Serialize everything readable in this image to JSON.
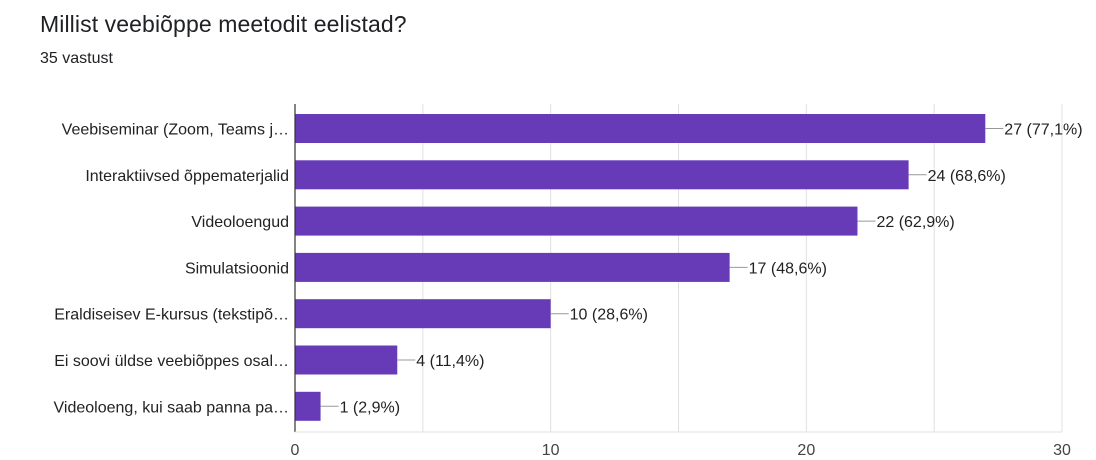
{
  "title": "Millist veebiõppe meetodit eelistad?",
  "subtitle": "35 vastust",
  "colors": {
    "bar": "#673ab7",
    "grid": "#e0e0e0",
    "axis": "#333333",
    "leader": "#999999"
  },
  "chart_data": {
    "type": "bar",
    "orientation": "horizontal",
    "categories": [
      "Veebiseminar (Zoom, Teams j…",
      "Interaktiivsed õppematerjalid",
      "Videoloengud",
      "Simulatsioonid",
      "Eraldiseisev E-kursus (tekstipõ…",
      "Ei soovi üldse veebiõppes osal…",
      "Videoloeng, kui saab panna pa…"
    ],
    "values": [
      27,
      24,
      22,
      17,
      10,
      4,
      1
    ],
    "value_labels": [
      "27 (77,1%)",
      "24 (68,6%)",
      "22 (62,9%)",
      "17 (48,6%)",
      "10 (28,6%)",
      "4 (11,4%)",
      "1 (2,9%)"
    ],
    "xlim": [
      0,
      30
    ],
    "xticks": [
      0,
      10,
      20,
      30
    ],
    "grid": true,
    "legend": "none"
  }
}
